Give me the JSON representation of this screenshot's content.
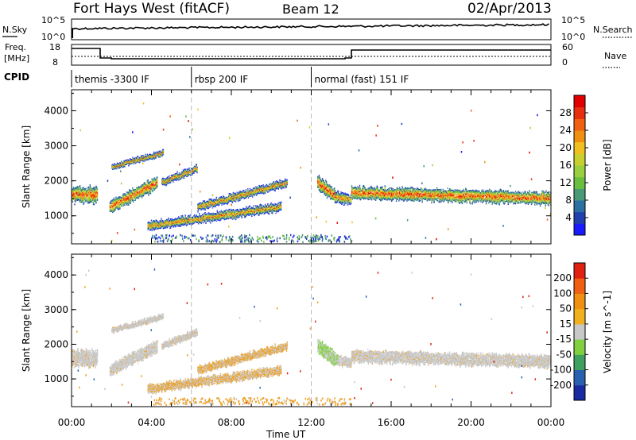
{
  "header": {
    "station": "Fort Hays West (fitACF)",
    "beam": "Beam 12",
    "date": "02/Apr/2013"
  },
  "noise_panel": {
    "left_label": "N.Sky",
    "right_label": "N.Search",
    "left_ticks": [
      "10^5",
      "10^0"
    ],
    "right_ticks": [
      "10^5",
      "10^0"
    ]
  },
  "freq_panel": {
    "left_label_1": "Freq.",
    "left_label_2": "[MHz]",
    "right_label": "Nave",
    "left_ticks": [
      "18",
      "8"
    ],
    "right_ticks": [
      "60",
      "0"
    ]
  },
  "cpid": {
    "label": "CPID",
    "segments": [
      {
        "label": "themis -3300 IF",
        "start_h": 0,
        "end_h": 6
      },
      {
        "label": "rbsp 200 IF",
        "start_h": 6,
        "end_h": 12
      },
      {
        "label": "normal (fast) 151 IF",
        "start_h": 12,
        "end_h": 24
      }
    ]
  },
  "chart_data": [
    {
      "type": "heatmap",
      "title": "Power",
      "xlabel": "Time UT",
      "ylabel": "Slant Range [km]",
      "xlim": [
        0,
        24
      ],
      "ylim": [
        200,
        4600
      ],
      "y_ticks": [
        "1000",
        "2000",
        "3000",
        "4000"
      ],
      "x_ticks": [
        "00:00",
        "04:00",
        "08:00",
        "12:00",
        "16:00",
        "20:00",
        "00:00"
      ],
      "colorbar": {
        "label": "Power [dB]",
        "ticks": [
          "4",
          "8",
          "12",
          "16",
          "20",
          "24",
          "28"
        ],
        "colors": [
          "#1a1aff",
          "#2040b0",
          "#2a70a0",
          "#4a9a78",
          "#6abf40",
          "#9ad040",
          "#c8d030",
          "#f0c020",
          "#f09010",
          "#f06010",
          "#e83010",
          "#e00000"
        ]
      },
      "bands": [
        {
          "t_start": 0.0,
          "t_end": 1.3,
          "center_start": 1600,
          "center_end": 1600,
          "width": 450
        },
        {
          "t_start": 1.9,
          "t_end": 4.3,
          "center_start": 1250,
          "center_end": 1950,
          "width": 350
        },
        {
          "t_start": 2.0,
          "t_end": 4.6,
          "center_start": 2400,
          "center_end": 2800,
          "width": 150
        },
        {
          "t_start": 4.5,
          "t_end": 6.3,
          "center_start": 1950,
          "center_end": 2350,
          "width": 200
        },
        {
          "t_start": 3.8,
          "t_end": 10.5,
          "center_start": 700,
          "center_end": 1250,
          "width": 250
        },
        {
          "t_start": 6.3,
          "t_end": 10.8,
          "center_start": 1250,
          "center_end": 1950,
          "width": 220
        },
        {
          "t_start": 12.3,
          "t_end": 13.2,
          "center_start": 1950,
          "center_end": 1550,
          "width": 400
        },
        {
          "t_start": 13.2,
          "t_end": 14.0,
          "center_start": 1550,
          "center_end": 1450,
          "width": 300
        },
        {
          "t_start": 14.0,
          "t_end": 24.0,
          "center_start": 1650,
          "center_end": 1500,
          "width": 350
        }
      ]
    },
    {
      "type": "heatmap",
      "title": "Velocity",
      "xlabel": "Time UT",
      "ylabel": "Slant Range [km]",
      "xlim": [
        0,
        24
      ],
      "ylim": [
        200,
        4600
      ],
      "y_ticks": [
        "1000",
        "2000",
        "3000",
        "4000"
      ],
      "x_ticks": [
        "00:00",
        "04:00",
        "08:00",
        "12:00",
        "16:00",
        "20:00",
        "00:00"
      ],
      "colorbar": {
        "label": "Velocity [m s^-1]",
        "ticks": [
          "200",
          "100",
          "50",
          "15",
          "-15",
          "-50",
          "-100",
          "-200"
        ],
        "colors": [
          "#1a2aa0",
          "#2a60b0",
          "#40a060",
          "#80d040",
          "#c8c8c8",
          "#f0b020",
          "#f09010",
          "#f06010",
          "#e02010"
        ]
      },
      "dominant_colors": {
        "ground": "#c8c8c8",
        "slow_away": "#f0a020",
        "toward": "#80d040"
      }
    }
  ],
  "x_axis_title": "Time UT"
}
